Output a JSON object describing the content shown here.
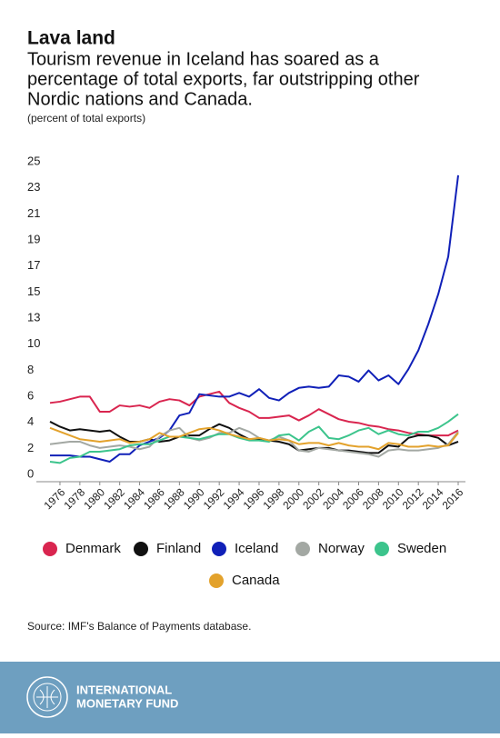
{
  "chart_data": {
    "type": "line",
    "title": "Lava land",
    "subtitle": [
      "Tourism revenue in Iceland has soared as a",
      "percentage of total exports, far outstripping other",
      "Nordic nations and Canada."
    ],
    "ylabel": "(percent of total exports)",
    "source": "Source: IMF's Balance of Payments database.",
    "x": [
      1975,
      1976,
      1977,
      1978,
      1979,
      1980,
      1981,
      1982,
      1983,
      1984,
      1985,
      1986,
      1987,
      1988,
      1989,
      1990,
      1991,
      1992,
      1993,
      1994,
      1995,
      1996,
      1997,
      1998,
      1999,
      2000,
      2001,
      2002,
      2003,
      2004,
      2005,
      2006,
      2007,
      2008,
      2009,
      2010,
      2011,
      2012,
      2013,
      2014,
      2015,
      2016
    ],
    "xlim": [
      1975,
      2016
    ],
    "xticks": [
      1976,
      1978,
      1980,
      1982,
      1984,
      1986,
      1988,
      1990,
      1992,
      1994,
      1996,
      1998,
      2000,
      2002,
      2004,
      2006,
      2008,
      2010,
      2012,
      2014,
      2016
    ],
    "ylim": [
      0,
      25
    ],
    "yticks": [
      0,
      {
        "value": 2.083,
        "label": "2"
      },
      {
        "value": 4.167,
        "label": "4"
      },
      {
        "value": 6.25,
        "label": "6"
      },
      {
        "value": 8.333,
        "label": "8"
      },
      {
        "value": 10.417,
        "label": "10"
      },
      {
        "value": 12.5,
        "label": "13"
      },
      {
        "value": 14.583,
        "label": "15"
      },
      {
        "value": 16.667,
        "label": "17"
      },
      {
        "value": 18.75,
        "label": "19"
      },
      {
        "value": 20.833,
        "label": "21"
      },
      {
        "value": 22.917,
        "label": "23"
      },
      25
    ],
    "series": [
      {
        "name": "Denmark",
        "color": "#d9254f",
        "values": [
          6.3,
          6.4,
          6.6,
          6.8,
          6.8,
          5.6,
          5.6,
          6.1,
          6.0,
          6.1,
          5.9,
          6.4,
          6.6,
          6.5,
          6.1,
          6.8,
          7.0,
          7.2,
          6.3,
          5.9,
          5.6,
          5.1,
          5.1,
          5.2,
          5.3,
          4.9,
          5.3,
          5.8,
          5.4,
          5.0,
          4.8,
          4.7,
          4.5,
          4.4,
          4.2,
          4.1,
          3.9,
          3.8,
          3.7,
          3.7,
          3.7,
          4.1
        ]
      },
      {
        "name": "Finland",
        "color": "#111111",
        "values": [
          4.8,
          4.4,
          4.1,
          4.2,
          4.1,
          4.0,
          4.1,
          3.6,
          3.2,
          3.2,
          3.4,
          3.2,
          3.3,
          3.6,
          3.7,
          3.7,
          4.2,
          4.6,
          4.3,
          3.8,
          3.4,
          3.4,
          3.3,
          3.2,
          3.0,
          2.5,
          2.6,
          2.7,
          2.7,
          2.5,
          2.5,
          2.4,
          2.3,
          2.3,
          2.9,
          2.8,
          3.5,
          3.7,
          3.7,
          3.5,
          2.9,
          3.2
        ]
      },
      {
        "name": "Iceland",
        "color": "#1020b8",
        "values": [
          2.1,
          2.1,
          2.1,
          2.0,
          2.0,
          1.8,
          1.6,
          2.2,
          2.2,
          2.9,
          3.2,
          3.5,
          4.1,
          5.3,
          5.5,
          7.0,
          6.9,
          6.8,
          6.8,
          7.1,
          6.8,
          7.4,
          6.7,
          6.5,
          7.1,
          7.5,
          7.6,
          7.5,
          7.6,
          8.5,
          8.4,
          8.0,
          8.9,
          8.1,
          8.5,
          7.8,
          9.0,
          10.5,
          12.6,
          15.0,
          18.0,
          24.5
        ]
      },
      {
        "name": "Norway",
        "color": "#a3a8a3",
        "values": [
          3.0,
          3.1,
          3.2,
          3.2,
          2.9,
          2.7,
          2.8,
          2.9,
          2.8,
          2.6,
          2.8,
          3.6,
          4.1,
          4.3,
          3.5,
          3.3,
          3.5,
          3.9,
          3.9,
          4.3,
          4.0,
          3.5,
          3.3,
          3.6,
          3.3,
          2.5,
          2.4,
          2.7,
          2.6,
          2.5,
          2.4,
          2.3,
          2.2,
          2.0,
          2.5,
          2.6,
          2.5,
          2.5,
          2.6,
          2.7,
          3.0,
          4.0
        ]
      },
      {
        "name": "Sweden",
        "color": "#3cc48c",
        "values": [
          1.6,
          1.5,
          1.9,
          2.0,
          2.4,
          2.4,
          2.5,
          2.6,
          2.9,
          3.0,
          3.0,
          3.3,
          3.6,
          3.6,
          3.5,
          3.4,
          3.6,
          3.8,
          3.8,
          3.5,
          3.3,
          3.3,
          3.2,
          3.7,
          3.8,
          3.3,
          4.0,
          4.4,
          3.5,
          3.4,
          3.7,
          4.1,
          4.3,
          3.8,
          4.1,
          3.8,
          3.7,
          4.0,
          4.0,
          4.3,
          4.8,
          5.4
        ]
      },
      {
        "name": "Canada",
        "color": "#e3a22c",
        "values": [
          4.3,
          4.0,
          3.7,
          3.4,
          3.3,
          3.2,
          3.3,
          3.4,
          3.1,
          3.2,
          3.4,
          3.9,
          3.6,
          3.6,
          3.9,
          4.2,
          4.3,
          4.1,
          3.8,
          3.6,
          3.4,
          3.5,
          3.3,
          3.4,
          3.3,
          3.0,
          3.1,
          3.1,
          2.9,
          3.1,
          2.9,
          2.8,
          2.8,
          2.6,
          3.1,
          3.0,
          2.8,
          2.8,
          2.9,
          2.8,
          2.9,
          3.9
        ]
      }
    ]
  },
  "footer": {
    "org": [
      "INTERNATIONAL",
      "MONETARY FUND"
    ]
  }
}
